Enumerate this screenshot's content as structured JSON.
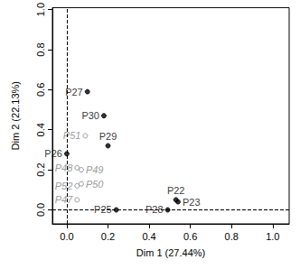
{
  "chart_data": {
    "type": "scatter",
    "x_label": "Dim 1 (27.44%)",
    "y_label": "Dim 2 (22.13%)",
    "xlim": [
      -0.07,
      1.08
    ],
    "ylim": [
      -0.07,
      1.01
    ],
    "xticks": [
      {
        "value": 0,
        "label": "0.0"
      },
      0.2,
      0.4,
      0.6,
      0.8,
      {
        "value": 1,
        "label": "1.0"
      }
    ],
    "yticks": [
      {
        "value": 0,
        "label": "0.0"
      },
      0.2,
      0.4,
      0.6,
      0.8,
      {
        "value": 1,
        "label": "1.0"
      }
    ],
    "grid": false,
    "series": [
      {
        "color": "#000000",
        "marker": "filled",
        "labels": [
          "P27",
          "P30",
          "P29",
          "P26",
          "P22",
          "P23",
          "P28",
          "P25"
        ],
        "x": [
          0.1,
          0.18,
          0.2,
          0.0,
          0.53,
          0.54,
          0.49,
          0.24
        ],
        "values": [
          0.59,
          0.47,
          0.32,
          0.28,
          0.05,
          0.04,
          0.0,
          0.0
        ]
      },
      {
        "color": "#808080",
        "marker": "open",
        "labels": [
          "P51",
          "P48",
          "P49",
          "P52",
          "P50",
          "P47"
        ],
        "x": [
          0.09,
          0.05,
          0.07,
          0.05,
          0.07,
          0.05
        ],
        "values": [
          0.37,
          0.21,
          0.2,
          0.12,
          0.13,
          0.05
        ]
      }
    ]
  }
}
